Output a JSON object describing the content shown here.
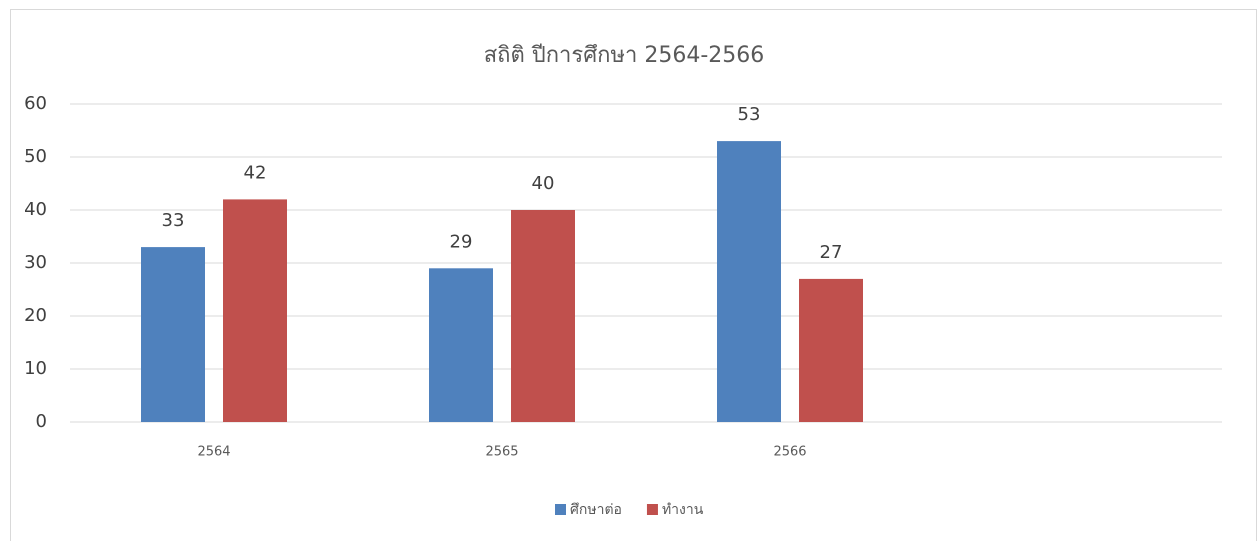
{
  "chart_data": {
    "type": "bar",
    "title": "สถิติ ปีการศึกษา 2564-2566",
    "categories": [
      "2564",
      "2565",
      "2566",
      null
    ],
    "series": [
      {
        "name": "ศึกษาต่อ",
        "color": "#4f81bd",
        "values": [
          33,
          29,
          53,
          null
        ]
      },
      {
        "name": "ทำงาน",
        "color": "#c0504d",
        "values": [
          42,
          40,
          27,
          null
        ]
      }
    ],
    "ylim": [
      0,
      60
    ],
    "yticks": [
      0,
      10,
      20,
      30,
      40,
      50,
      60
    ],
    "grid": true,
    "legend": "bottom"
  }
}
